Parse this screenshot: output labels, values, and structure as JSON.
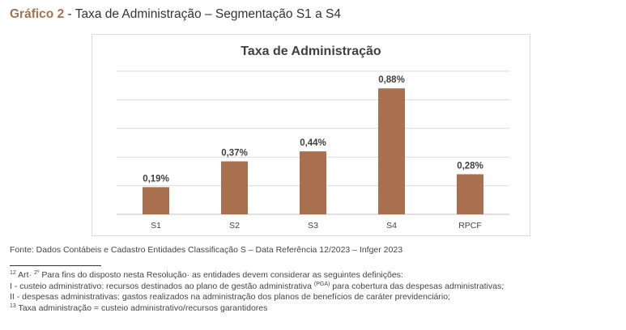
{
  "heading": {
    "prefix": "Gráfico 2",
    "title": " - Taxa de Administração – Segmentação S1 a S4"
  },
  "chart_data": {
    "type": "bar",
    "title": "Taxa de Administração",
    "categories": [
      "S1",
      "S2",
      "S3",
      "S4",
      "RPCF"
    ],
    "values": [
      0.19,
      0.37,
      0.44,
      0.88,
      0.28
    ],
    "value_labels": [
      "0,19%",
      "0,37%",
      "0,44%",
      "0,88%",
      "0,28%"
    ],
    "xlabel": "",
    "ylabel": "",
    "ylim": [
      0,
      1.0
    ],
    "grid": true,
    "legend": "none",
    "bar_color": "#a8704f"
  },
  "source": "Fonte: Dados Contábeis e Cadastro Entidades Classificação S – Data Referência 12/2023 – Infger 2023",
  "footnotes": {
    "fn12_marker": "12",
    "fn12_art": " Art· ",
    "fn12_art_sup": "2º",
    "fn12_text": " Para fins do disposto nesta Resolução· as entidades devem considerar as seguintes definições:",
    "line_i_before": "I - custeio administrativo: recursos destinados ao plano de gestão administrativa ",
    "line_i_sup": "(PGA)",
    "line_i_after": " para cobertura das despesas administrativas;",
    "line_ii": "II - despesas administrativas: gastos realizados na administração dos planos de benefícios de caráter previdenciário;",
    "fn13_marker": "13",
    "fn13_text": "  Taxa administração = custeio administrativo/recursos garantidores"
  }
}
